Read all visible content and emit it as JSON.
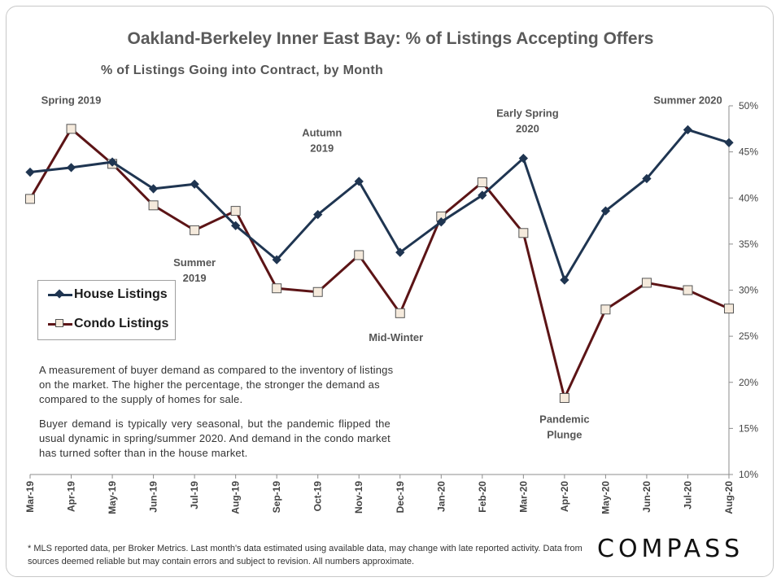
{
  "title": "Oakland-Berkeley Inner East Bay: % of Listings Accepting Offers",
  "subtitle": "% of Listings Going into Contract,  by Month",
  "legend": {
    "house": "House Listings",
    "condo": "Condo Listings"
  },
  "notes": {
    "p1": "A measurement of buyer demand as compared to the inventory of listings on the market. The higher the percentage, the stronger the demand as compared to the supply of homes for sale.",
    "p2": "Buyer demand is typically very seasonal, but the pandemic flipped the usual dynamic in spring/summer 2020. And demand in the condo market has turned softer than in the house market."
  },
  "footnote": "* MLS reported data, per Broker Metrics. Last month's data estimated using available data, may change with late reported activity.  Data from sources deemed reliable but may contain  errors and subject to revision.  All numbers approximate.",
  "logo": "COMPASS",
  "colors": {
    "house": "#1f3551",
    "condo": "#5c1416",
    "condo_marker_fill": "#f5eadc"
  },
  "chart_data": {
    "type": "line",
    "categories": [
      "Mar-19",
      "Apr-19",
      "May-19",
      "Jun-19",
      "Jul-19",
      "Aug-19",
      "Sep-19",
      "Oct-19",
      "Nov-19",
      "Dec-19",
      "Jan-20",
      "Feb-20",
      "Mar-20",
      "Apr-20",
      "May-20",
      "Jun-20",
      "Jul-20",
      "Aug-20"
    ],
    "series": [
      {
        "name": "House Listings",
        "values": [
          42.8,
          43.3,
          43.9,
          41.0,
          41.5,
          37.0,
          33.3,
          38.2,
          41.8,
          34.1,
          37.4,
          40.3,
          44.3,
          31.1,
          38.6,
          42.1,
          47.4,
          46.0
        ]
      },
      {
        "name": "Condo Listings",
        "values": [
          39.9,
          47.5,
          43.7,
          39.2,
          36.5,
          38.6,
          30.2,
          29.8,
          33.8,
          27.5,
          38.0,
          41.7,
          36.2,
          18.3,
          27.9,
          30.8,
          30.0,
          28.0
        ]
      }
    ],
    "yaxis": {
      "min": 10,
      "max": 50,
      "step": 5,
      "tick_labels": [
        "10%",
        "15%",
        "20%",
        "25%",
        "30%",
        "35%",
        "40%",
        "45%",
        "50%"
      ],
      "position": "right"
    },
    "annotations": [
      {
        "text": "Spring 2019",
        "lines": [
          "Spring 2019"
        ],
        "x_index": 1,
        "y_value": 50.2
      },
      {
        "text": "Summer 2019",
        "lines": [
          "Summer",
          "2019"
        ],
        "x_index": 4,
        "y_value": 32.6
      },
      {
        "text": "Autumn 2019",
        "lines": [
          "Autumn",
          "2019"
        ],
        "x_index": 7.1,
        "y_value": 46.7
      },
      {
        "text": "Mid-Winter",
        "lines": [
          "Mid-Winter"
        ],
        "x_index": 8.9,
        "y_value": 24.5
      },
      {
        "text": "Early Spring 2020",
        "lines": [
          "Early Spring",
          "2020"
        ],
        "x_index": 12.1,
        "y_value": 48.8
      },
      {
        "text": "Pandemic Plunge",
        "lines": [
          "Pandemic",
          "Plunge"
        ],
        "x_index": 13.0,
        "y_value": 15.6
      },
      {
        "text": "Summer 2020",
        "lines": [
          "Summer 2020"
        ],
        "x_index": 16.0,
        "y_value": 50.2
      }
    ],
    "grid": false,
    "legend_position": "left-middle"
  }
}
